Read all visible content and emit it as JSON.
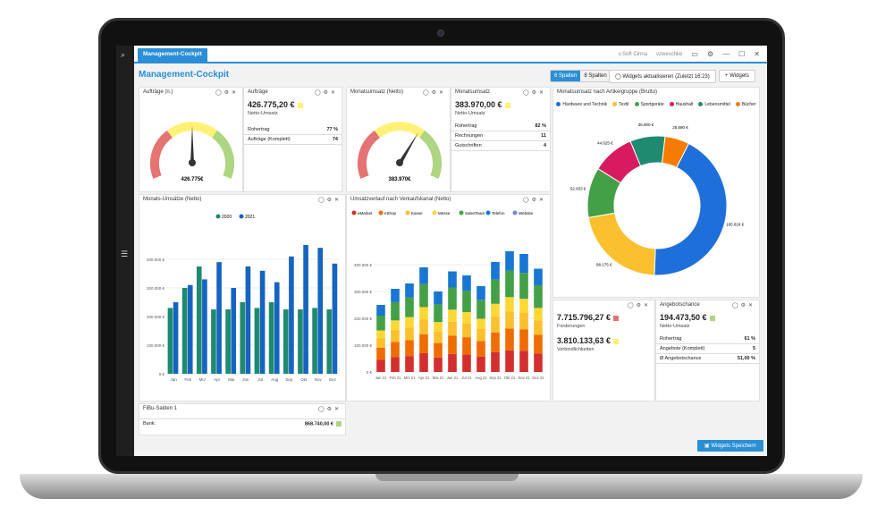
{
  "app": {
    "tab": "Management-Cockpit",
    "title": "Management-Cockpit",
    "user1": "v.Soft Cinna",
    "user2": "vzweschke"
  },
  "header": {
    "cols6": "6 Spalten",
    "cols8": "8 Spalten",
    "refresh": "Widgets aktualisieren (Zuletzt 16:23)",
    "add": "Widgets"
  },
  "w1": {
    "title": "Aufträge (n.)",
    "value": "426.775€"
  },
  "w2": {
    "title": "Aufträge",
    "big": "426.775,20 €",
    "sub": "Netto-Umsatz",
    "rows": [
      [
        "Rohertrag",
        "77 %"
      ],
      [
        "Aufträge (Komplett)",
        "74"
      ]
    ]
  },
  "w3": {
    "title": "Monatsumsatz (Netto)",
    "value": "383.970€"
  },
  "w4": {
    "title": "Monatsumsatz",
    "big": "383.970,00 €",
    "sub": "Netto-Umsatz",
    "rows": [
      [
        "Rohertrag",
        "82 %"
      ],
      [
        "Rechnungen",
        "11"
      ],
      [
        "Gutschriften",
        "4"
      ]
    ]
  },
  "w5": {
    "title": "Monatsumsatz nach Artikelgruppe (Brutto)"
  },
  "w6": {
    "title": "Monats-Umsätze (Netto)"
  },
  "w7": {
    "title": "Umsatzverlauf nach Verkaufskanal (Netto)"
  },
  "w8": {
    "big1": "7.715.796,27 €",
    "sub1": "Forderungen",
    "big2": "3.810.133,63 €",
    "sub2": "Verbindlichkeiten"
  },
  "w9": {
    "title": "Angebotschance",
    "big": "194.473,50 €",
    "sub": "Netto-Umsatz",
    "rows": [
      [
        "Rohertrag",
        "61 %"
      ],
      [
        "Angebote (Komplett)",
        "5"
      ],
      [
        "Ø Angebotschance",
        "51,00 %"
      ]
    ]
  },
  "w10": {
    "title": "FiBu-Salden 1",
    "label": "Bank:",
    "value": "868.740,00 €"
  },
  "save": "Widgets Speichern",
  "colors": {
    "accent": "#2a8fd6",
    "green": "#1f8a70",
    "blue": "#1565c0"
  },
  "chart_data": [
    {
      "type": "bar",
      "title": "Monats-Umsätze (Netto)",
      "categories": [
        "Jan",
        "Feb",
        "Mrz",
        "Apr",
        "Mai",
        "Jun",
        "Jul",
        "Aug",
        "Sep",
        "Okt",
        "Nov",
        "Dez"
      ],
      "ylim": [
        0,
        500000
      ],
      "yticks": [
        "0 €",
        "100.000 €",
        "200.000 €",
        "300.000 €",
        "400.000 €"
      ],
      "series": [
        {
          "name": "2020",
          "color": "#1f8a70",
          "values": [
            230000,
            300000,
            375000,
            225000,
            225000,
            250000,
            230000,
            250000,
            225000,
            225000,
            230000,
            225000
          ]
        },
        {
          "name": "2021",
          "color": "#1565c0",
          "values": [
            250000,
            310000,
            330000,
            390000,
            300000,
            375000,
            360000,
            320000,
            410000,
            450000,
            440000,
            385000
          ]
        }
      ]
    },
    {
      "type": "bar",
      "title": "Umsatzverlauf nach Verkaufskanal (Netto)",
      "legend": [
        "eMarket",
        "eShop",
        "Kasse",
        "Messe",
        "SalesTeam",
        "Telefon",
        "Website"
      ],
      "legendColors": [
        "#d32f2f",
        "#ef6c00",
        "#fbc02d",
        "#fdd835",
        "#43a047",
        "#1976d2",
        "#7986cb"
      ],
      "categories": [
        "Jan 21",
        "Feb 21",
        "Mrz 21",
        "Apr 21",
        "Mai 21",
        "Jun 21",
        "Jul 21",
        "Aug 21",
        "Sep 21",
        "Okt 21",
        "Nov 21",
        "Dez 21"
      ],
      "totals": [
        250000,
        310000,
        330000,
        390000,
        300000,
        375000,
        360000,
        320000,
        410000,
        450000,
        440000,
        385000
      ],
      "ylim": [
        0,
        500000
      ],
      "yticks": [
        "0 €",
        "100.000 €",
        "200.000 €",
        "300.000 €",
        "400.000 €"
      ]
    },
    {
      "type": "pie",
      "title": "Monatsumsatz nach Artikelgruppe (Brutto)",
      "labels": [
        "Hardware und Technik",
        "Textil",
        "Sportgeräte",
        "Haushalt",
        "Lebensmittel",
        "Bücher"
      ],
      "colors": [
        "#1e6fd9",
        "#fbc02d",
        "#43a047",
        "#d81b60",
        "#1f8a70",
        "#f57c00"
      ],
      "values": [
        195818,
        98175,
        52933,
        44625,
        36800,
        25680
      ],
      "valueLabels": [
        "195.818 €",
        "98.175 €",
        "52.933 €",
        "44.625 €",
        "36.800 €",
        "25.680 €"
      ]
    }
  ]
}
